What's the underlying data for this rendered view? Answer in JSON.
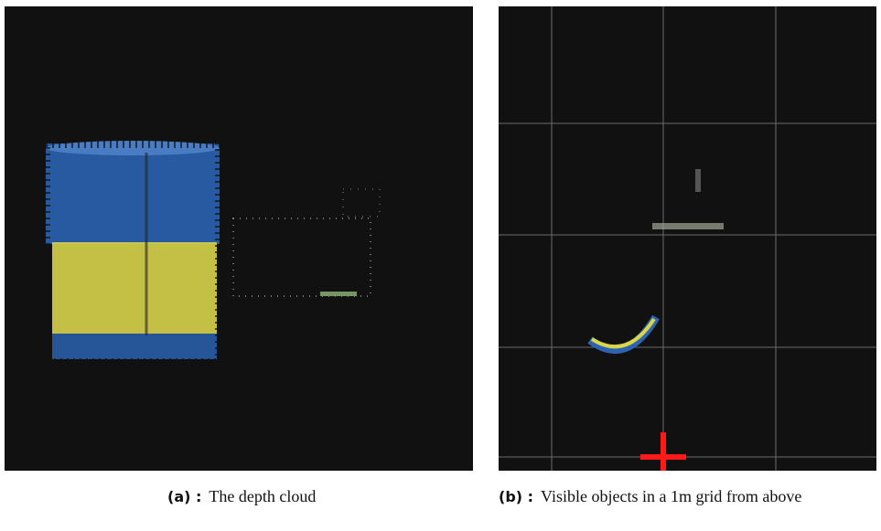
{
  "figure": {
    "panels": [
      {
        "label": "(a) :",
        "caption": "The depth cloud"
      },
      {
        "label": "(b) :",
        "caption": "Visible objects in a 1m grid from above"
      }
    ]
  }
}
